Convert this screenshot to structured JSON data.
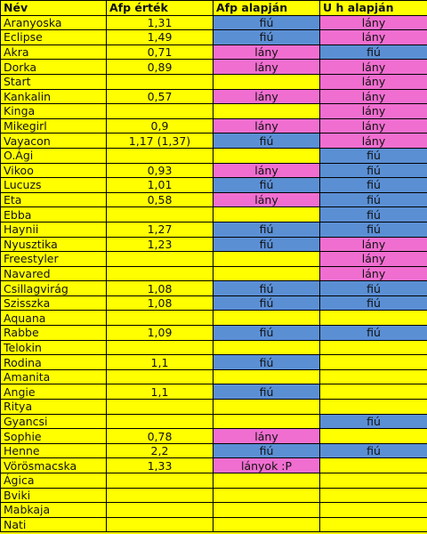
{
  "colors": {
    "yellow": "#ffff00",
    "fiu": "#5b8fd4",
    "lany": "#f06ed0"
  },
  "headers": [
    "Név",
    "Afp érték",
    "Afp alapján",
    "U h alapján"
  ],
  "rows": [
    {
      "name": "Aranyoska",
      "value": "1,31",
      "afp": "fiú",
      "uh": "lány"
    },
    {
      "name": "Eclipse",
      "value": "1,49",
      "afp": "fiú",
      "uh": "lány"
    },
    {
      "name": "Akra",
      "value": "0,71",
      "afp": "lány",
      "uh": "fiú"
    },
    {
      "name": "Dorka",
      "value": "0,89",
      "afp": "lány",
      "uh": "lány"
    },
    {
      "name": "Start",
      "value": "",
      "afp": "",
      "uh": "lány"
    },
    {
      "name": "Kankalin",
      "value": "0,57",
      "afp": "lány",
      "uh": "lány"
    },
    {
      "name": "Kinga",
      "value": "",
      "afp": "",
      "uh": "lány"
    },
    {
      "name": "Mikegirl",
      "value": "0,9",
      "afp": "lány",
      "uh": "lány"
    },
    {
      "name": "Vayacon",
      "value": "1,17 (1,37)",
      "afp": "fiú",
      "uh": "lány"
    },
    {
      "name": "O.Ági",
      "value": "",
      "afp": "",
      "uh": "fiú"
    },
    {
      "name": "Vikoo",
      "value": "0,93",
      "afp": "lány",
      "uh": "fiú"
    },
    {
      "name": "Lucuzs",
      "value": "1,01",
      "afp": "fiú",
      "uh": "fiú"
    },
    {
      "name": "Eta",
      "value": "0,58",
      "afp": "lány",
      "uh": "fiú"
    },
    {
      "name": "Ebba",
      "value": "",
      "afp": "",
      "uh": "fiú"
    },
    {
      "name": "Haynii",
      "value": "1,27",
      "afp": "fiú",
      "uh": "fiú"
    },
    {
      "name": "Nyusztika",
      "value": "1,23",
      "afp": "fiú",
      "uh": "lány"
    },
    {
      "name": "Freestyler",
      "value": "",
      "afp": "",
      "uh": "lány"
    },
    {
      "name": "Navared",
      "value": "",
      "afp": "",
      "uh": "lány"
    },
    {
      "name": "Csillagvirág",
      "value": "1,08",
      "afp": "fiú",
      "uh": "fiú"
    },
    {
      "name": "Szisszka",
      "value": "1,08",
      "afp": "fiú",
      "uh": "fiú"
    },
    {
      "name": "Aquana",
      "value": "",
      "afp": "",
      "uh": ""
    },
    {
      "name": "Rabbe",
      "value": "1,09",
      "afp": "fiú",
      "uh": "fiú"
    },
    {
      "name": "Telokin",
      "value": "",
      "afp": "",
      "uh": ""
    },
    {
      "name": "Rodina",
      "value": "1,1",
      "afp": "fiú",
      "uh": ""
    },
    {
      "name": "Amanita",
      "value": "",
      "afp": "",
      "uh": ""
    },
    {
      "name": "Angie",
      "value": "1,1",
      "afp": "fiú",
      "uh": ""
    },
    {
      "name": "Ritya",
      "value": "",
      "afp": "",
      "uh": ""
    },
    {
      "name": "Gyancsi",
      "value": "",
      "afp": "",
      "uh": "fiú"
    },
    {
      "name": "Sophie",
      "value": "0,78",
      "afp": "lány",
      "uh": ""
    },
    {
      "name": "Henne",
      "value": "2,2",
      "afp": "fiú",
      "uh": "fiú"
    },
    {
      "name": "Vörösmacska",
      "value": "1,33",
      "afp": "lányok :P",
      "uh": ""
    },
    {
      "name": "Ágica",
      "value": "",
      "afp": "",
      "uh": ""
    },
    {
      "name": "Bviki",
      "value": "",
      "afp": "",
      "uh": ""
    },
    {
      "name": "Mabkaja",
      "value": "",
      "afp": "",
      "uh": ""
    },
    {
      "name": "Nati",
      "value": "",
      "afp": "",
      "uh": ""
    }
  ]
}
